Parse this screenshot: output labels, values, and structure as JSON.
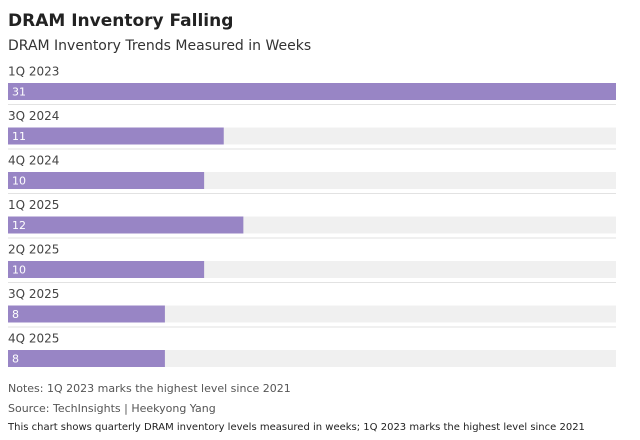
{
  "chart_data": {
    "type": "bar",
    "orientation": "horizontal",
    "title": "DRAM Inventory Falling",
    "subtitle": "DRAM Inventory Trends Measured in Weeks",
    "categories": [
      "1Q 2023",
      "3Q 2024",
      "4Q 2024",
      "1Q 2025",
      "2Q 2025",
      "3Q 2025",
      "4Q 2025"
    ],
    "values": [
      31,
      11,
      10,
      12,
      10,
      8,
      8
    ],
    "color": "#9885c5",
    "notes": "Notes: 1Q 2023 marks the highest level since 2021",
    "source": "Source: TechInsights | Heekyong Yang",
    "description": "This chart shows quarterly DRAM inventory levels measured in weeks; 1Q 2023 marks the highest level since 2021"
  }
}
